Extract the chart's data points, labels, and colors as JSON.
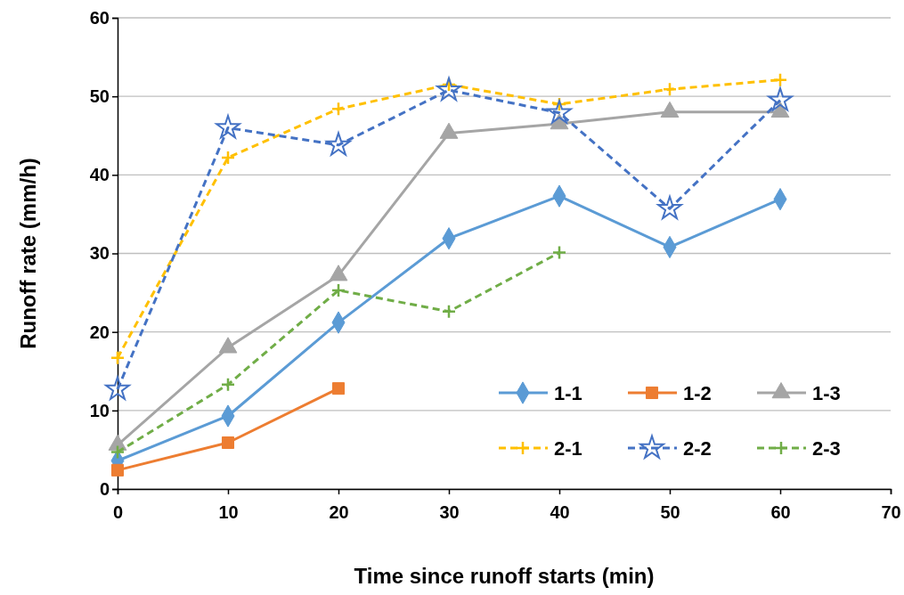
{
  "chart_data": {
    "type": "line",
    "xlabel": "Time since runoff starts (min)",
    "ylabel": "Runoff rate (mm/h)",
    "x": [
      0,
      10,
      20,
      30,
      40,
      50,
      60
    ],
    "xlim": [
      0,
      70
    ],
    "xticks": [
      0,
      10,
      20,
      30,
      40,
      50,
      60,
      70
    ],
    "ylim": [
      0,
      60
    ],
    "yticks": [
      0,
      10,
      20,
      30,
      40,
      50,
      60
    ],
    "grid": "y",
    "legend": "bottom right",
    "series": [
      {
        "name": "1-1",
        "color": "#5b9bd5",
        "marker": "diamond",
        "line_style": "solid",
        "values": [
          3.6,
          9.3,
          21.2,
          31.9,
          37.3,
          30.8,
          36.9
        ]
      },
      {
        "name": "1-2",
        "color": "#ed7d31",
        "marker": "square",
        "line_style": "solid",
        "values": [
          2.4,
          5.9,
          12.8,
          null,
          null,
          null,
          null
        ]
      },
      {
        "name": "1-3",
        "color": "#a5a5a5",
        "marker": "triangle",
        "line_style": "solid",
        "values": [
          5.6,
          18,
          27.2,
          45.3,
          46.5,
          48,
          48
        ]
      },
      {
        "name": "2-1",
        "color": "#ffc000",
        "marker": "cross",
        "line_style": "dashed",
        "values": [
          16.7,
          42.2,
          48.4,
          51.5,
          49,
          50.9,
          52.1
        ]
      },
      {
        "name": "2-2",
        "color": "#4472c4",
        "marker": "star",
        "line_style": "dashed",
        "values": [
          12.7,
          46,
          43.8,
          50.8,
          47.9,
          35.7,
          49.5
        ]
      },
      {
        "name": "2-3",
        "color": "#70ad47",
        "marker": "cross",
        "line_style": "dashed",
        "values": [
          4.7,
          13.3,
          25.3,
          22.6,
          30.1,
          null,
          null
        ]
      }
    ]
  }
}
